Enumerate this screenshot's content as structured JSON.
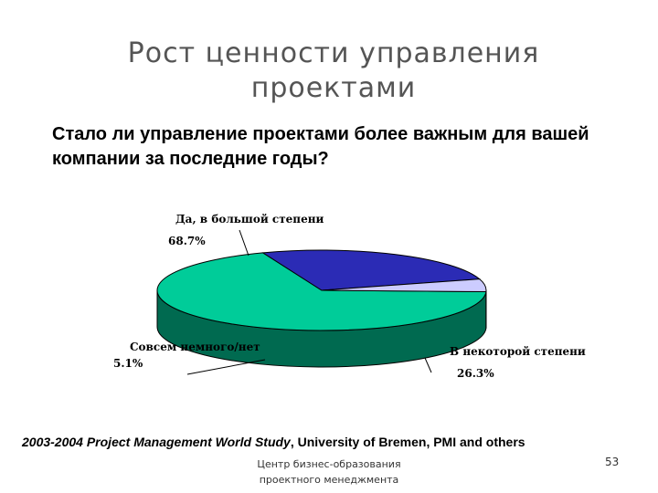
{
  "slide": {
    "title": "Рост ценности управления проектами",
    "question": "Стало ли управление проектами более важным для вашей компании за последние годы?",
    "source_italic": "2003-2004 Project Management World Study",
    "source_rest": ", University of Bremen, PMI and others",
    "footer_line1": "Центр бизнес-образования",
    "footer_line2": "проектного менеджмента",
    "page_number": "53"
  },
  "chart_data": {
    "type": "pie",
    "title": "",
    "slices": [
      {
        "label": "Да, в большой степени",
        "value": 68.7,
        "value_label": "68.7%",
        "color": "#00CC99",
        "side_color": "#006A50"
      },
      {
        "label": "В некоторой степени",
        "value": 26.3,
        "value_label": "26.3%",
        "color": "#2B2BB5",
        "side_color": "#1C1C6E"
      },
      {
        "label": "Совсем немного/нет",
        "value": 5.1,
        "value_label": "5.1%",
        "color": "#CCCCFF",
        "side_color": "#5E5E78"
      }
    ]
  }
}
